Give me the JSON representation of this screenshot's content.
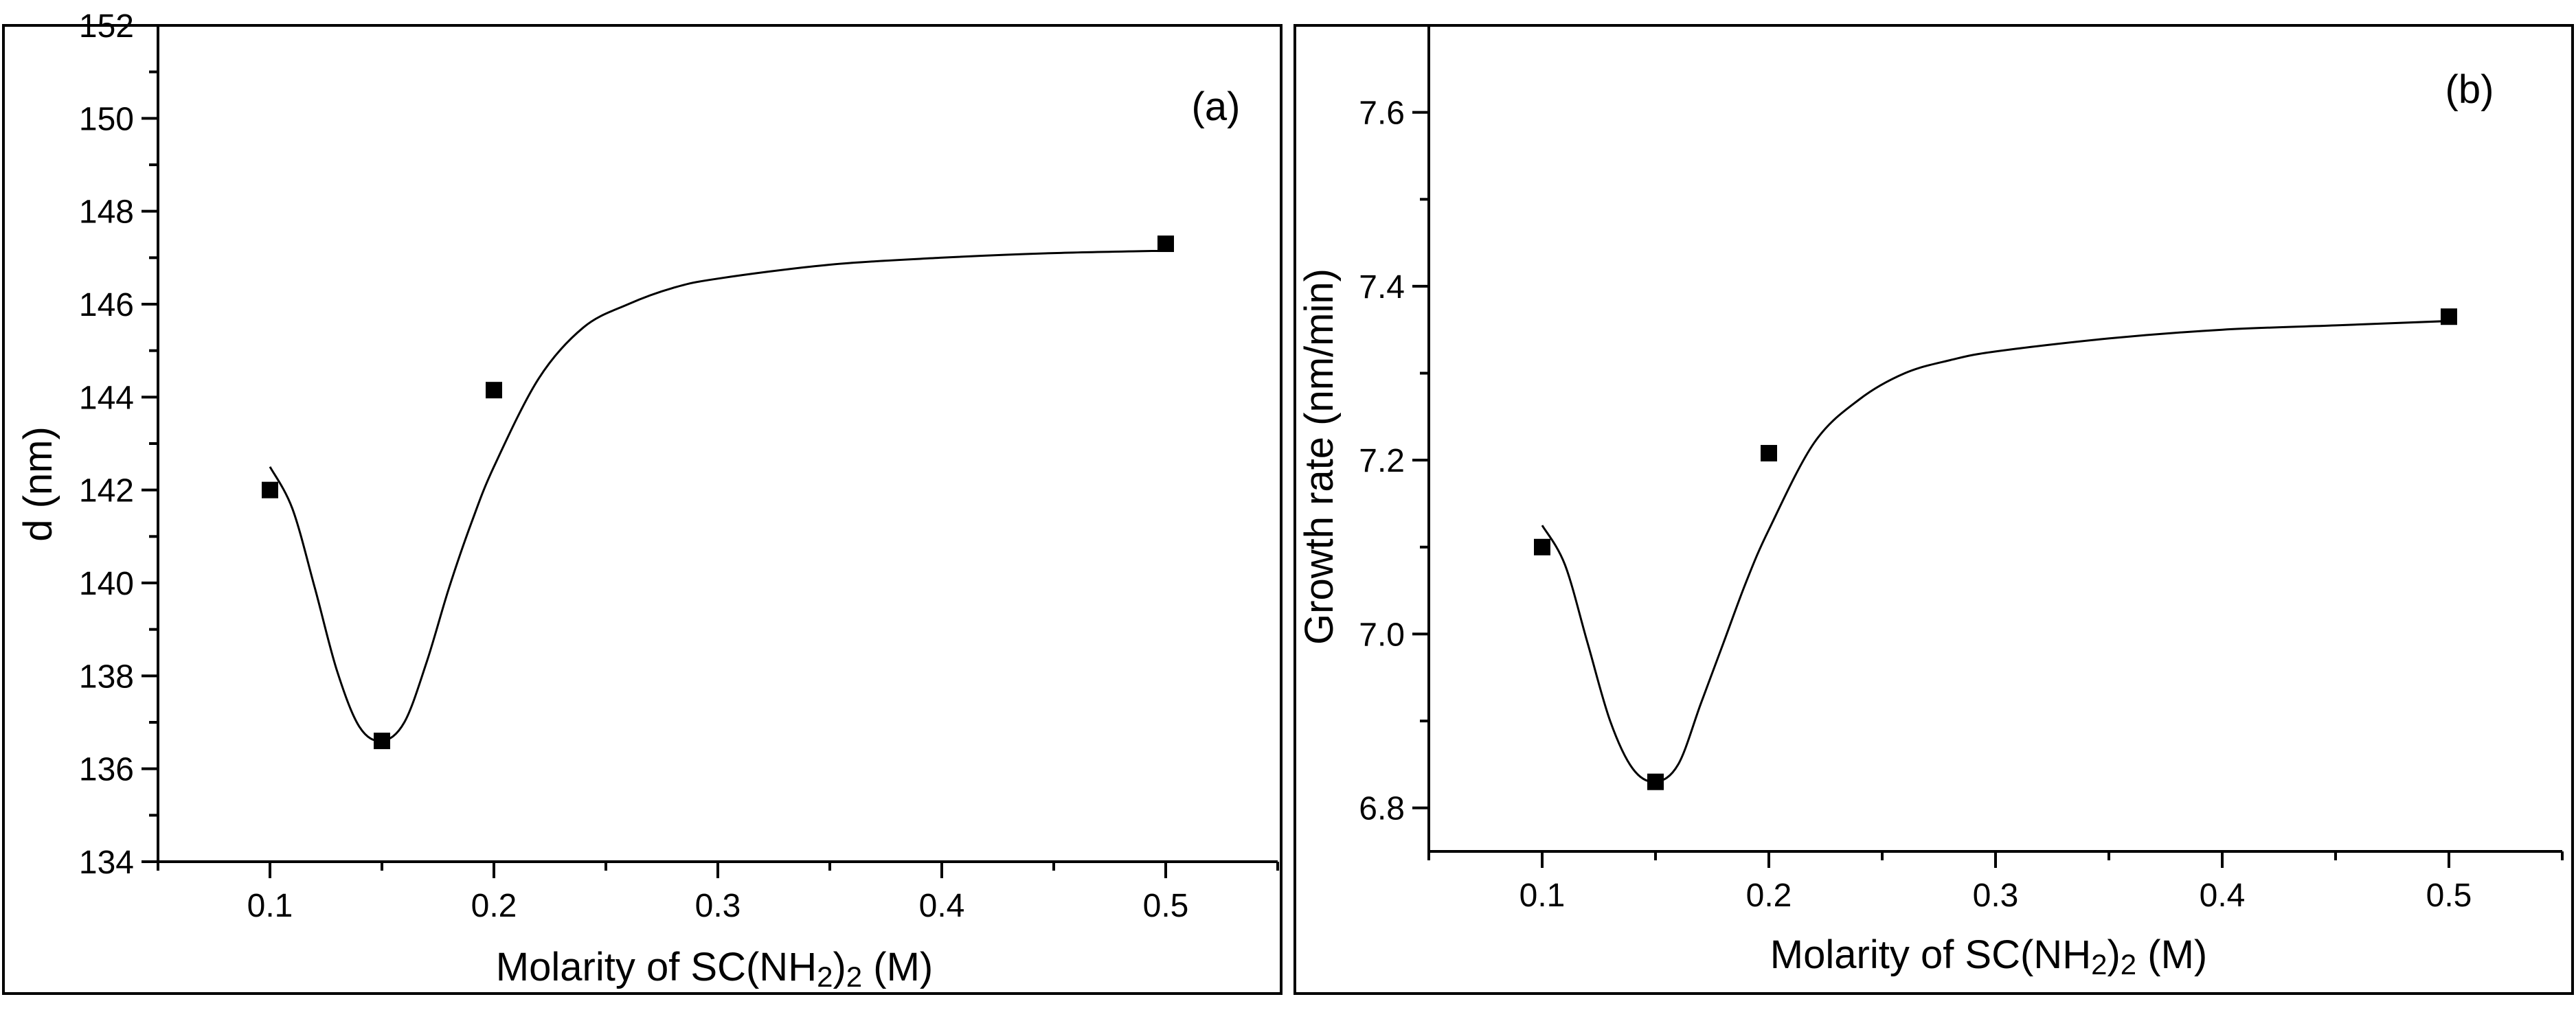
{
  "figure": {
    "description_color": "#000000"
  },
  "chart_data": [
    {
      "type": "scatter",
      "panel_label": "(a)",
      "xlabel_main": "Molarity of SC(NH",
      "xlabel_sub": "2",
      "xlabel_tail": ")",
      "xlabel_sub2": "2",
      "xlabel_unit": " (M)",
      "ylabel": "d (nm)",
      "xlim": [
        0.05,
        0.55
      ],
      "ylim": [
        134,
        152
      ],
      "xticks": [
        0.1,
        0.2,
        0.3,
        0.4,
        0.5
      ],
      "xtick_labels": [
        "0.1",
        "0.2",
        "0.3",
        "0.4",
        "0.5"
      ],
      "yticks": [
        134,
        136,
        138,
        140,
        142,
        144,
        146,
        148,
        150,
        152
      ],
      "ytick_labels": [
        "134",
        "136",
        "138",
        "140",
        "142",
        "144",
        "146",
        "148",
        "150",
        "152"
      ],
      "points": {
        "x": [
          0.1,
          0.15,
          0.2,
          0.5
        ],
        "y": [
          142.0,
          136.6,
          144.15,
          147.3
        ]
      },
      "fit_curve": {
        "x": [
          0.1,
          0.11,
          0.12,
          0.13,
          0.14,
          0.15,
          0.16,
          0.17,
          0.18,
          0.19,
          0.2,
          0.22,
          0.24,
          0.26,
          0.28,
          0.3,
          0.35,
          0.4,
          0.45,
          0.5
        ],
        "y": [
          142.5,
          141.6,
          139.9,
          138.1,
          136.9,
          136.6,
          137.0,
          138.3,
          139.9,
          141.3,
          142.5,
          144.4,
          145.5,
          146.0,
          146.35,
          146.55,
          146.85,
          147.0,
          147.1,
          147.15
        ]
      }
    },
    {
      "type": "scatter",
      "panel_label": "(b)",
      "xlabel_main": "Molarity of SC(NH",
      "xlabel_sub": "2",
      "xlabel_tail": ")",
      "xlabel_sub2": "2",
      "xlabel_unit": " (M)",
      "ylabel": "Growth rate (nm/min)",
      "xlim": [
        0.05,
        0.55
      ],
      "ylim": [
        6.75,
        7.7
      ],
      "xticks": [
        0.1,
        0.2,
        0.3,
        0.4,
        0.5
      ],
      "xtick_labels": [
        "0.1",
        "0.2",
        "0.3",
        "0.4",
        "0.5"
      ],
      "yticks": [
        6.8,
        7.0,
        7.2,
        7.4,
        7.6
      ],
      "ytick_labels": [
        "6.8",
        "7.0",
        "7.2",
        "7.4",
        "7.6"
      ],
      "points": {
        "x": [
          0.1,
          0.15,
          0.2,
          0.5
        ],
        "y": [
          7.1,
          6.83,
          7.208,
          7.365
        ]
      },
      "fit_curve": {
        "x": [
          0.1,
          0.11,
          0.12,
          0.13,
          0.14,
          0.15,
          0.16,
          0.17,
          0.18,
          0.19,
          0.2,
          0.22,
          0.24,
          0.26,
          0.28,
          0.3,
          0.35,
          0.4,
          0.45,
          0.5
        ],
        "y": [
          7.125,
          7.08,
          6.99,
          6.9,
          6.845,
          6.83,
          6.85,
          6.92,
          6.99,
          7.06,
          7.12,
          7.22,
          7.27,
          7.3,
          7.315,
          7.325,
          7.34,
          7.35,
          7.355,
          7.36
        ]
      }
    }
  ]
}
